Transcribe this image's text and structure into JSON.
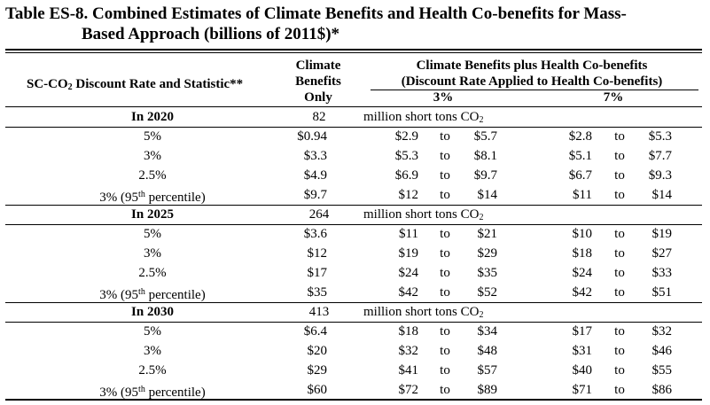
{
  "table": {
    "title_line1": "Table ES-8.   Combined Estimates of Climate Benefits and Health Co-benefits for Mass-",
    "title_line2": "Based Approach (billions of 2011$)*",
    "header": {
      "col1_label_pre": "SC-CO",
      "col1_label_sub": "2",
      "col1_label_post": " Discount Rate and Statistic**",
      "col2_line1": "Climate",
      "col2_line2": "Benefits",
      "col2_line3": "Only",
      "col3_line1": "Climate Benefits plus Health Co-benefits",
      "col3_line2": "(Discount Rate Applied to Health Co-benefits)",
      "sub_3pct": "3%",
      "sub_7pct": "7%"
    },
    "to_word": "to",
    "units_pre": "million short tons CO",
    "units_sub": "2",
    "pct95_pre": "3% (95",
    "pct95_sup": "th",
    "pct95_post": " percentile)",
    "groups": [
      {
        "year": "In 2020",
        "emissions": "82",
        "rows": [
          {
            "label": "5%",
            "climate": "$0.94",
            "lo3": "$2.9",
            "hi3": "$5.7",
            "lo7": "$2.8",
            "hi7": "$5.3"
          },
          {
            "label": "3%",
            "climate": "$3.3",
            "lo3": "$5.3",
            "hi3": "$8.1",
            "lo7": "$5.1",
            "hi7": "$7.7"
          },
          {
            "label": "2.5%",
            "climate": "$4.9",
            "lo3": "$6.9",
            "hi3": "$9.7",
            "lo7": "$6.7",
            "hi7": "$9.3"
          },
          {
            "label": "",
            "climate": "$9.7",
            "lo3": "$12",
            "hi3": "$14",
            "lo7": "$11",
            "hi7": "$14"
          }
        ]
      },
      {
        "year": "In 2025",
        "emissions": "264",
        "rows": [
          {
            "label": "5%",
            "climate": "$3.6",
            "lo3": "$11",
            "hi3": "$21",
            "lo7": "$10",
            "hi7": "$19"
          },
          {
            "label": "3%",
            "climate": "$12",
            "lo3": "$19",
            "hi3": "$29",
            "lo7": "$18",
            "hi7": "$27"
          },
          {
            "label": "2.5%",
            "climate": "$17",
            "lo3": "$24",
            "hi3": "$35",
            "lo7": "$24",
            "hi7": "$33"
          },
          {
            "label": "",
            "climate": "$35",
            "lo3": "$42",
            "hi3": "$52",
            "lo7": "$42",
            "hi7": "$51"
          }
        ]
      },
      {
        "year": "In 2030",
        "emissions": "413",
        "rows": [
          {
            "label": "5%",
            "climate": "$6.4",
            "lo3": "$18",
            "hi3": "$34",
            "lo7": "$17",
            "hi7": "$32"
          },
          {
            "label": "3%",
            "climate": "$20",
            "lo3": "$32",
            "hi3": "$48",
            "lo7": "$31",
            "hi7": "$46"
          },
          {
            "label": "2.5%",
            "climate": "$29",
            "lo3": "$41",
            "hi3": "$57",
            "lo7": "$40",
            "hi7": "$55"
          },
          {
            "label": "",
            "climate": "$60",
            "lo3": "$72",
            "hi3": "$89",
            "lo7": "$71",
            "hi7": "$86"
          }
        ]
      }
    ]
  }
}
